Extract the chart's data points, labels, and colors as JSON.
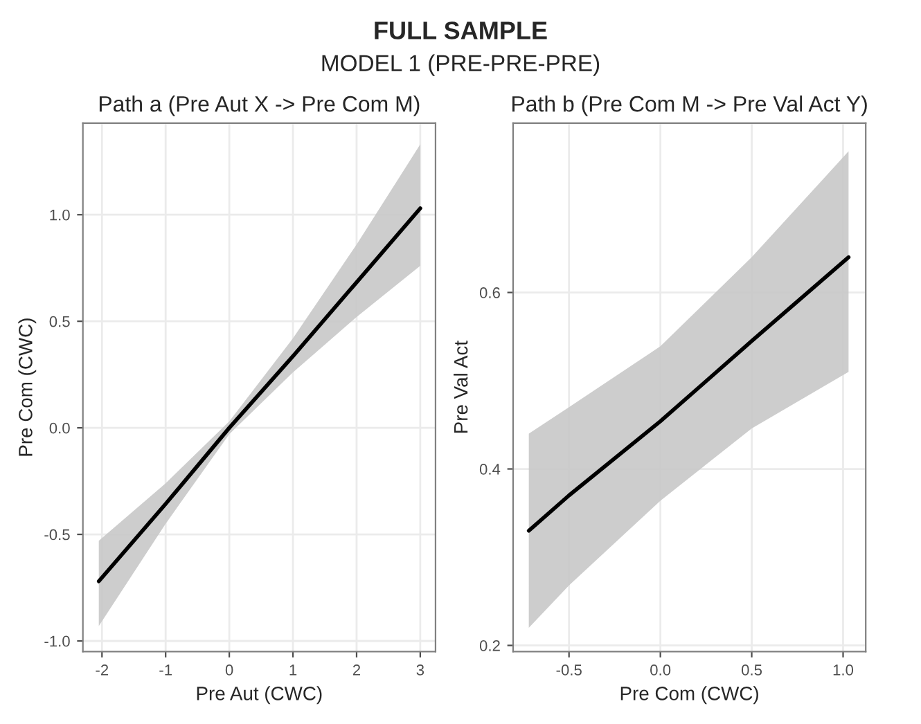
{
  "chart_data": [
    {
      "type": "line",
      "title": "Path a (Pre Aut X -> Pre Com M)",
      "xlabel": "Pre Aut (CWC)",
      "ylabel": "Pre Com (CWC)",
      "annotations": [
        "FULL SAMPLE",
        "MODEL 1 (PRE-PRE-PRE)"
      ],
      "x": [
        -2.05,
        -1,
        0,
        1,
        2,
        3
      ],
      "series": [
        {
          "color": "#000000",
          "values": [
            -0.72,
            -0.357,
            0.0,
            0.336,
            0.683,
            1.03
          ],
          "lower": [
            -0.93,
            -0.45,
            -0.03,
            0.26,
            0.52,
            0.76
          ],
          "upper": [
            -0.53,
            -0.26,
            0.03,
            0.42,
            0.86,
            1.33
          ]
        }
      ],
      "xlim": [
        -2.3,
        3.24
      ],
      "ylim": [
        -1.05,
        1.43
      ],
      "xticks": [
        -2,
        -1,
        0,
        1,
        2,
        3
      ],
      "yticks": [
        {
          "value": -1.0,
          "label": "-1.0"
        },
        -0.5,
        {
          "value": 0.0,
          "label": "0.0"
        },
        0.5,
        {
          "value": 1.0,
          "label": "1.0"
        }
      ],
      "grid": true,
      "line_style": "solid",
      "marker": "none"
    },
    {
      "type": "line",
      "title": "Path b (Pre Com M -> Pre Val Act Y)",
      "xlabel": "Pre Com (CWC)",
      "ylabel": "Pre Val Act",
      "x": [
        -0.72,
        -0.5,
        0,
        0.5,
        1.03
      ],
      "series": [
        {
          "color": "#000000",
          "values": [
            0.33,
            0.37,
            0.454,
            0.545,
            0.64
          ],
          "lower": [
            0.22,
            0.268,
            0.364,
            0.446,
            0.51
          ],
          "upper": [
            0.44,
            0.47,
            0.539,
            0.64,
            0.76
          ]
        }
      ],
      "xlim": [
        -0.806,
        1.124
      ],
      "ylim": [
        0.193,
        0.792
      ],
      "xticks": [
        -0.5,
        {
          "value": 0.0,
          "label": "0.0"
        },
        0.5,
        {
          "value": 1.0,
          "label": "1.0"
        }
      ],
      "yticks": [
        0.2,
        0.4,
        0.6
      ],
      "grid": true,
      "line_style": "solid",
      "marker": "none"
    }
  ]
}
